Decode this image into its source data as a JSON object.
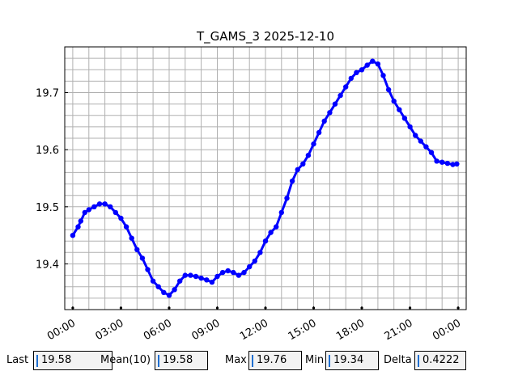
{
  "chart_data": {
    "type": "line",
    "title": "T_GAMS_3 2025-12-10",
    "xlabel": "",
    "ylabel": "",
    "xlim": [
      "2025-12-09 23:30",
      "2025-12-11 00:30"
    ],
    "ylim": [
      19.32,
      19.78
    ],
    "xticks": [
      "00:00",
      "03:00",
      "06:00",
      "09:00",
      "12:00",
      "15:00",
      "18:00",
      "21:00",
      "00:00"
    ],
    "yticks": [
      19.4,
      19.5,
      19.6,
      19.7
    ],
    "grid": true,
    "series": [
      {
        "color": "#0000ff",
        "x": [
          "2025-12-10 00:00",
          "2025-12-10 00:20",
          "2025-12-10 00:30",
          "2025-12-10 00:45",
          "2025-12-10 01:00",
          "2025-12-10 01:20",
          "2025-12-10 01:40",
          "2025-12-10 02:00",
          "2025-12-10 02:20",
          "2025-12-10 02:40",
          "2025-12-10 03:00",
          "2025-12-10 03:20",
          "2025-12-10 03:40",
          "2025-12-10 04:00",
          "2025-12-10 04:20",
          "2025-12-10 04:40",
          "2025-12-10 05:00",
          "2025-12-10 05:20",
          "2025-12-10 05:40",
          "2025-12-10 06:00",
          "2025-12-10 06:20",
          "2025-12-10 06:40",
          "2025-12-10 07:00",
          "2025-12-10 07:20",
          "2025-12-10 07:40",
          "2025-12-10 08:00",
          "2025-12-10 08:20",
          "2025-12-10 08:40",
          "2025-12-10 09:00",
          "2025-12-10 09:20",
          "2025-12-10 09:40",
          "2025-12-10 10:00",
          "2025-12-10 10:20",
          "2025-12-10 10:40",
          "2025-12-10 11:00",
          "2025-12-10 11:20",
          "2025-12-10 11:40",
          "2025-12-10 12:00",
          "2025-12-10 12:20",
          "2025-12-10 12:40",
          "2025-12-10 13:00",
          "2025-12-10 13:20",
          "2025-12-10 13:40",
          "2025-12-10 14:00",
          "2025-12-10 14:20",
          "2025-12-10 14:40",
          "2025-12-10 15:00",
          "2025-12-10 15:20",
          "2025-12-10 15:40",
          "2025-12-10 16:00",
          "2025-12-10 16:20",
          "2025-12-10 16:40",
          "2025-12-10 17:00",
          "2025-12-10 17:20",
          "2025-12-10 17:40",
          "2025-12-10 18:00",
          "2025-12-10 18:20",
          "2025-12-10 18:40",
          "2025-12-10 19:00",
          "2025-12-10 19:20",
          "2025-12-10 19:40",
          "2025-12-10 20:00",
          "2025-12-10 20:20",
          "2025-12-10 20:40",
          "2025-12-10 21:00",
          "2025-12-10 21:20",
          "2025-12-10 21:40",
          "2025-12-10 22:00",
          "2025-12-10 22:20",
          "2025-12-10 22:40",
          "2025-12-10 23:00",
          "2025-12-10 23:20",
          "2025-12-10 23:40",
          "2025-12-10 23:55"
        ],
        "y": [
          19.45,
          19.465,
          19.475,
          19.49,
          19.495,
          19.5,
          19.505,
          19.505,
          19.5,
          19.49,
          19.48,
          19.465,
          19.445,
          19.425,
          19.41,
          19.39,
          19.37,
          19.36,
          19.35,
          19.345,
          19.355,
          19.37,
          19.38,
          19.38,
          19.378,
          19.375,
          19.372,
          19.368,
          19.378,
          19.385,
          19.388,
          19.385,
          19.38,
          19.385,
          19.395,
          19.405,
          19.42,
          19.44,
          19.455,
          19.465,
          19.49,
          19.515,
          19.545,
          19.565,
          19.575,
          19.59,
          19.61,
          19.63,
          19.65,
          19.665,
          19.68,
          19.695,
          19.71,
          19.725,
          19.735,
          19.74,
          19.748,
          19.755,
          19.75,
          19.73,
          19.705,
          19.685,
          19.67,
          19.655,
          19.64,
          19.625,
          19.615,
          19.605,
          19.595,
          19.58,
          19.578,
          19.576,
          19.574,
          19.575
        ]
      }
    ]
  },
  "stats": [
    {
      "label": "Last",
      "value": "19.58"
    },
    {
      "label": "Mean(10)",
      "value": "19.58"
    },
    {
      "label": "Max",
      "value": "19.76"
    },
    {
      "label": "Min",
      "value": "19.34"
    },
    {
      "label": "Delta",
      "value": "0.4222"
    }
  ]
}
